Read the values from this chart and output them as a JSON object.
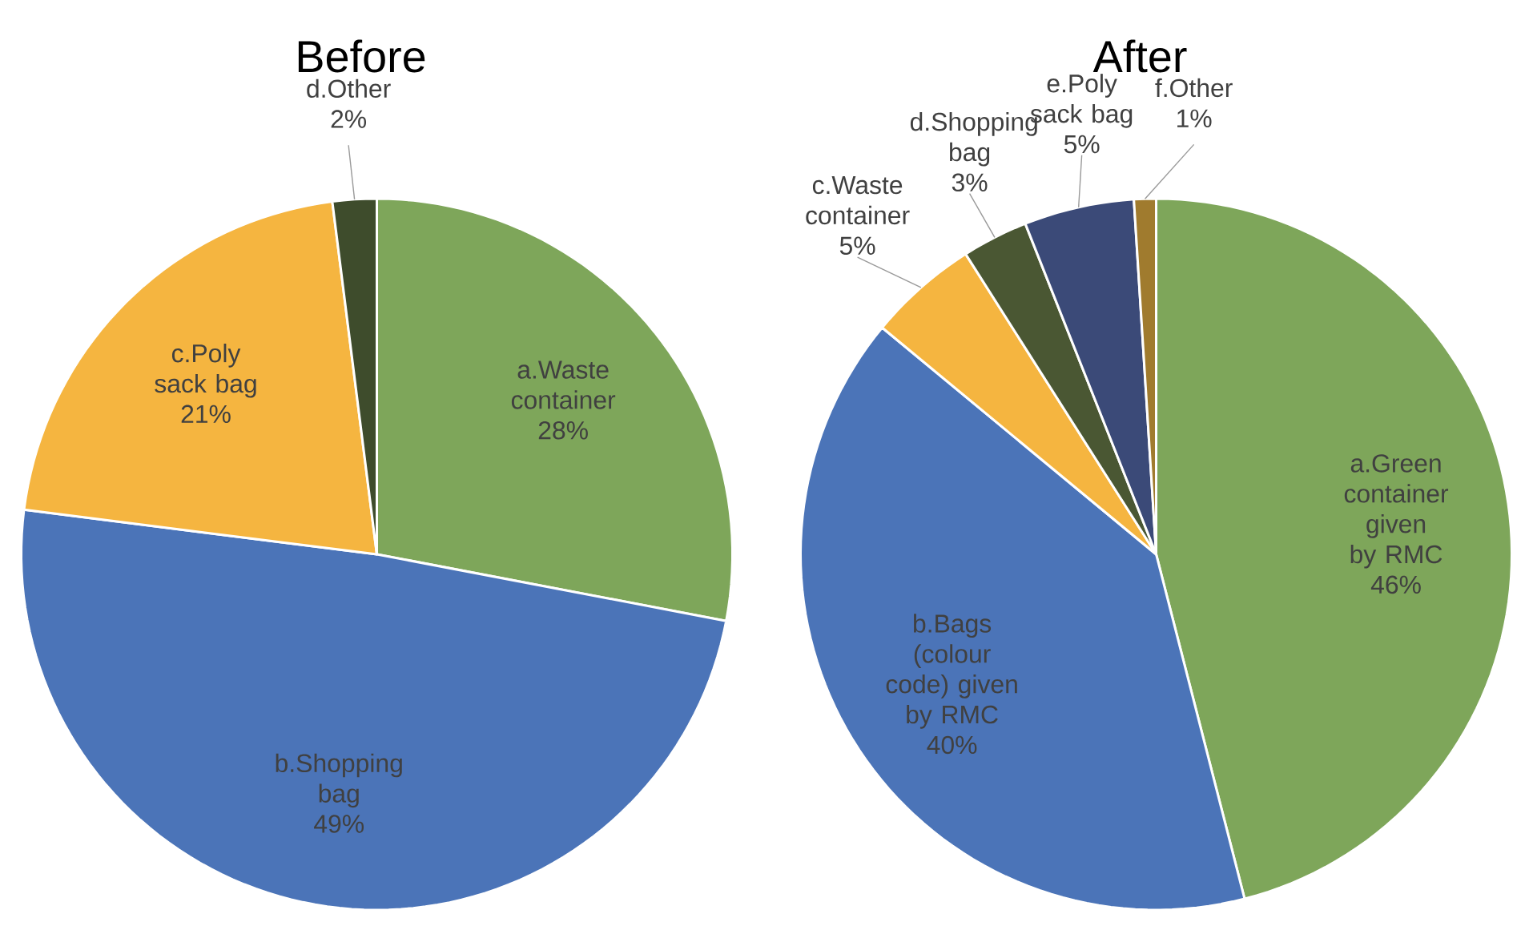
{
  "chart_data": [
    {
      "type": "pie",
      "title": "Before",
      "categories": [
        "a.Waste container",
        "b.Shopping bag",
        "c.Poly sack bag",
        "d.Other"
      ],
      "values": [
        28,
        49,
        21,
        2
      ],
      "value_labels": [
        "28%",
        "49%",
        "21%",
        "2%"
      ],
      "colors": [
        "#7ea65a",
        "#4b74b8",
        "#f5b540",
        "#3e4c2c"
      ]
    },
    {
      "type": "pie",
      "title": "After",
      "categories": [
        "a.Green container given by RMC",
        "b.Bags (colour code) given by RMC",
        "c.Waste container",
        "d.Shopping bag",
        "e.Poly sack bag",
        "f.Other"
      ],
      "values": [
        46,
        40,
        5,
        3,
        5,
        1
      ],
      "value_labels": [
        "46%",
        "40%",
        "5%",
        "3%",
        "5%",
        "1%"
      ],
      "colors": [
        "#7ea65a",
        "#4b74b8",
        "#f5b540",
        "#4a5733",
        "#3b4a78",
        "#a07b2e"
      ]
    }
  ]
}
